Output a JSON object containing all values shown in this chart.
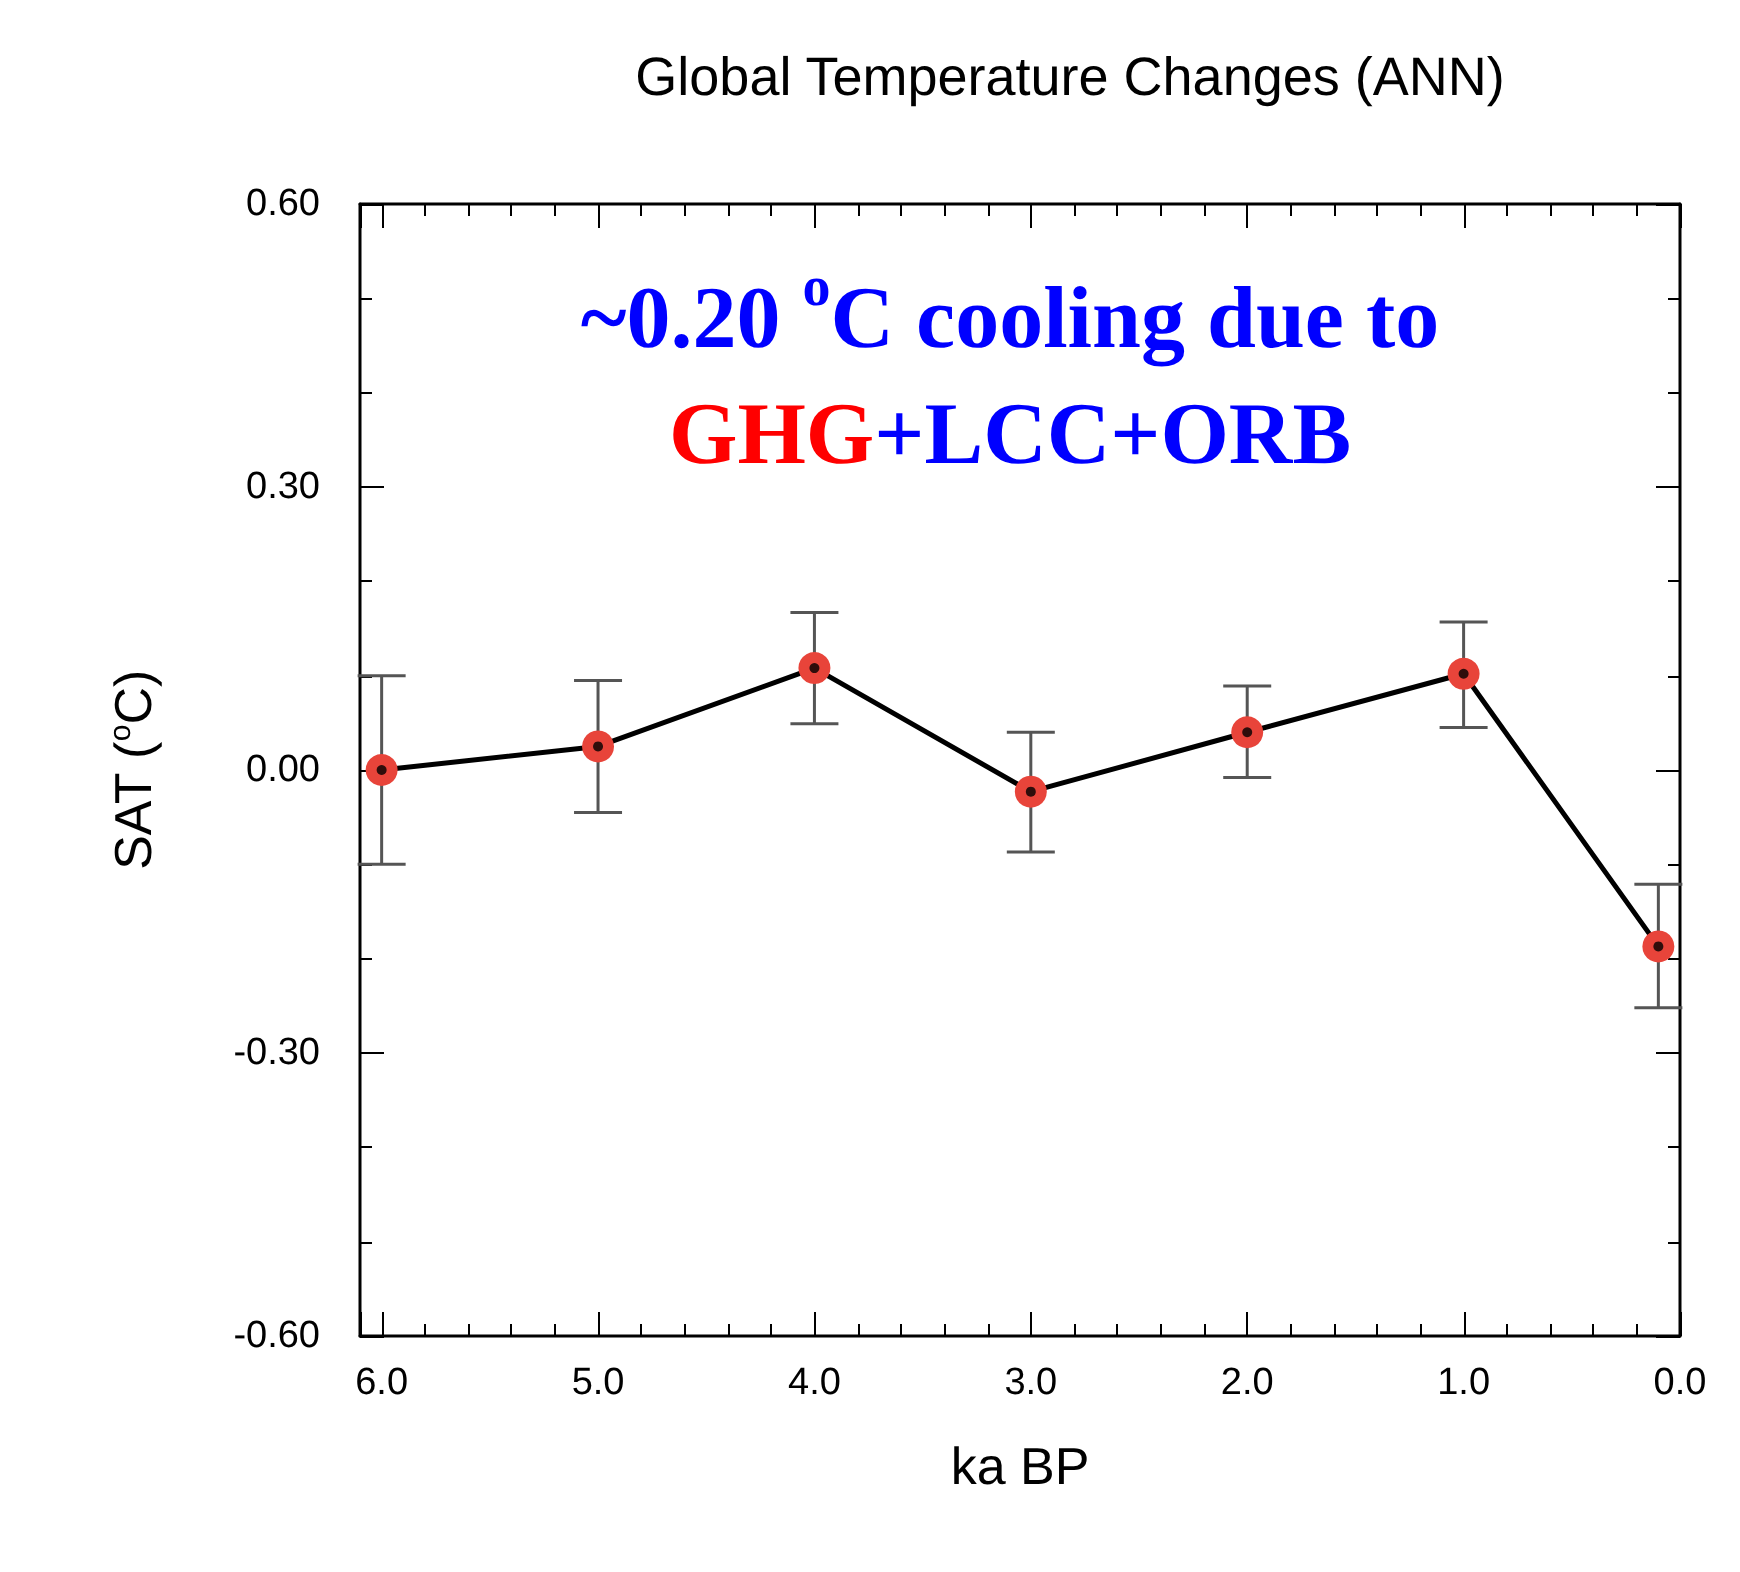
{
  "chart_data": {
    "type": "line",
    "title": "Global Temperature Changes (ANN)",
    "xlabel": "ka BP",
    "ylabel": "SAT ($^{o}$C)",
    "annotations": [
      "~0.20 $^{o}$C cooling due to",
      "GHG",
      "+LCC+ORB"
    ],
    "x": [
      6.0,
      5.0,
      4.0,
      3.0,
      2.0,
      1.0,
      0.1
    ],
    "series": [
      {
        "color": "#e8443a",
        "values": [
          0.0,
          0.025,
          0.108,
          -0.023,
          0.04,
          0.102,
          -0.187
        ],
        "errors": [
          0.1,
          [
            -0.045,
            0.095
          ],
          [
            0.049,
            0.167
          ],
          [
            -0.087,
            0.04
          ],
          [
            -0.008,
            0.089
          ],
          [
            0.045,
            0.157
          ],
          [
            -0.252,
            -0.121
          ]
        ]
      }
    ],
    "xlim": [
      6.1,
      0
    ],
    "xticks": [
      {
        "value": 6,
        "label": "6.0"
      },
      {
        "value": 5,
        "label": "5.0"
      },
      {
        "value": 4,
        "label": "4.0"
      },
      {
        "value": 3,
        "label": "3.0"
      },
      {
        "value": 2,
        "label": "2.0"
      },
      {
        "value": 1,
        "label": "1.0"
      },
      {
        "value": 0,
        "label": "0.0"
      }
    ],
    "ylim": [
      -0.6,
      0.6
    ],
    "yticks": [
      {
        "value": -0.6,
        "label": "-0.60"
      },
      {
        "value": -0.3,
        "label": "-0.30"
      },
      {
        "value": 0,
        "label": "0.00"
      },
      {
        "value": 0.3,
        "label": "0.30"
      },
      {
        "value": 0.6,
        "label": "0.60"
      }
    ],
    "grid": false,
    "marker": "circle",
    "line_style": "solid"
  }
}
